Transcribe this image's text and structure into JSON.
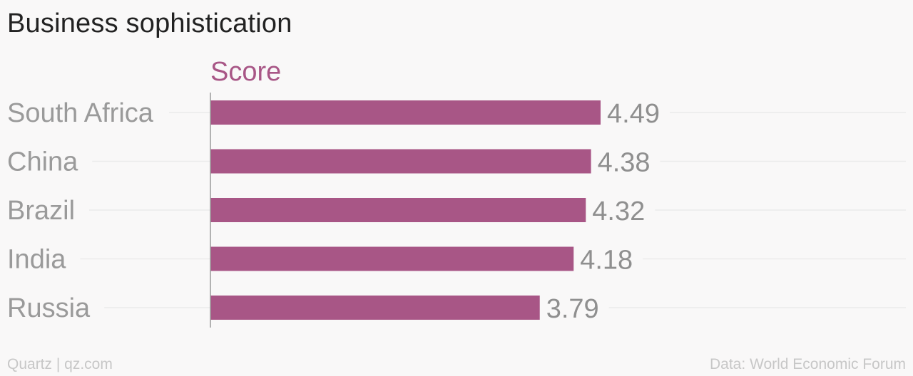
{
  "chart_data": {
    "type": "bar",
    "orientation": "horizontal",
    "title": "Business sophistication",
    "value_label": "Score",
    "categories": [
      "South Africa",
      "China",
      "Brazil",
      "India",
      "Russia"
    ],
    "values": [
      4.49,
      4.38,
      4.32,
      4.18,
      3.79
    ],
    "value_labels": [
      "4.49",
      "4.38",
      "4.32",
      "4.18",
      "3.79"
    ],
    "xlim": [
      0,
      6
    ],
    "grid": true,
    "legend": "none",
    "colors": {
      "bar": "#a85686",
      "value_label_header": "#a85686",
      "category_label": "#9a9a9a",
      "value_text": "#8f8f8f",
      "gridline": "#ebebeb",
      "axis": "#9a9a9a"
    }
  },
  "footer": {
    "source_left": "Quartz | qz.com",
    "source_right": "Data: World Economic Forum"
  }
}
